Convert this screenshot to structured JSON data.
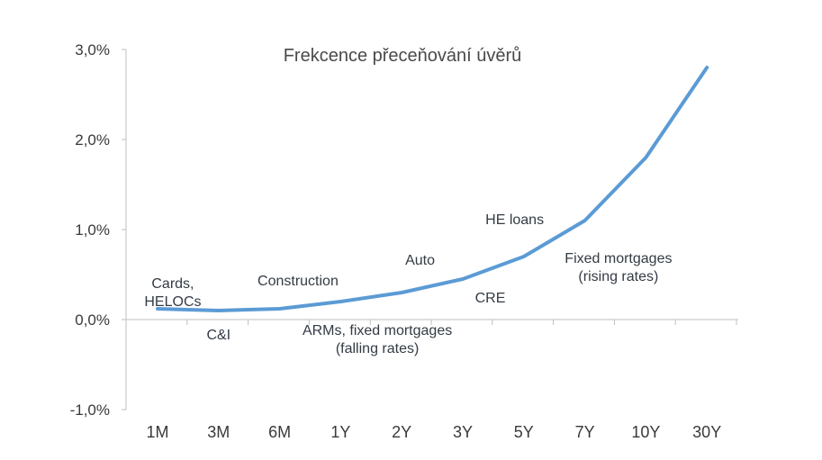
{
  "chart_data": {
    "type": "line",
    "title": "Frekcence přeceňování úvěrů",
    "xlabel": "",
    "ylabel": "",
    "categories": [
      "1M",
      "3M",
      "6M",
      "1Y",
      "2Y",
      "3Y",
      "5Y",
      "7Y",
      "10Y",
      "30Y"
    ],
    "series": [
      {
        "values": [
          0.12,
          0.1,
          0.12,
          0.2,
          0.3,
          0.45,
          0.7,
          1.1,
          1.8,
          2.8
        ]
      }
    ],
    "ylim": [
      -1.0,
      3.0
    ],
    "yticks": [
      "-1,0%",
      "0,0%",
      "1,0%",
      "2,0%",
      "3,0%"
    ],
    "ytick_values": [
      -1.0,
      0.0,
      1.0,
      2.0,
      3.0
    ],
    "grid": false,
    "line_color": "#5b9bd5",
    "annotations": [
      {
        "lines": [
          "Cards,",
          "HELOCs"
        ],
        "x": 0.25,
        "y": 0.35
      },
      {
        "lines": [
          "C&I"
        ],
        "x": 1.0,
        "y": -0.22
      },
      {
        "lines": [
          "Construction"
        ],
        "x": 2.3,
        "y": 0.38
      },
      {
        "lines": [
          "ARMs, fixed mortgages",
          "(falling rates)"
        ],
        "x": 3.6,
        "y": -0.17
      },
      {
        "lines": [
          "Auto"
        ],
        "x": 4.3,
        "y": 0.61
      },
      {
        "lines": [
          "CRE"
        ],
        "x": 5.45,
        "y": 0.19
      },
      {
        "lines": [
          "HE loans"
        ],
        "x": 5.85,
        "y": 1.06
      },
      {
        "lines": [
          "Fixed mortgages",
          "(rising rates)"
        ],
        "x": 7.55,
        "y": 0.63
      }
    ]
  }
}
